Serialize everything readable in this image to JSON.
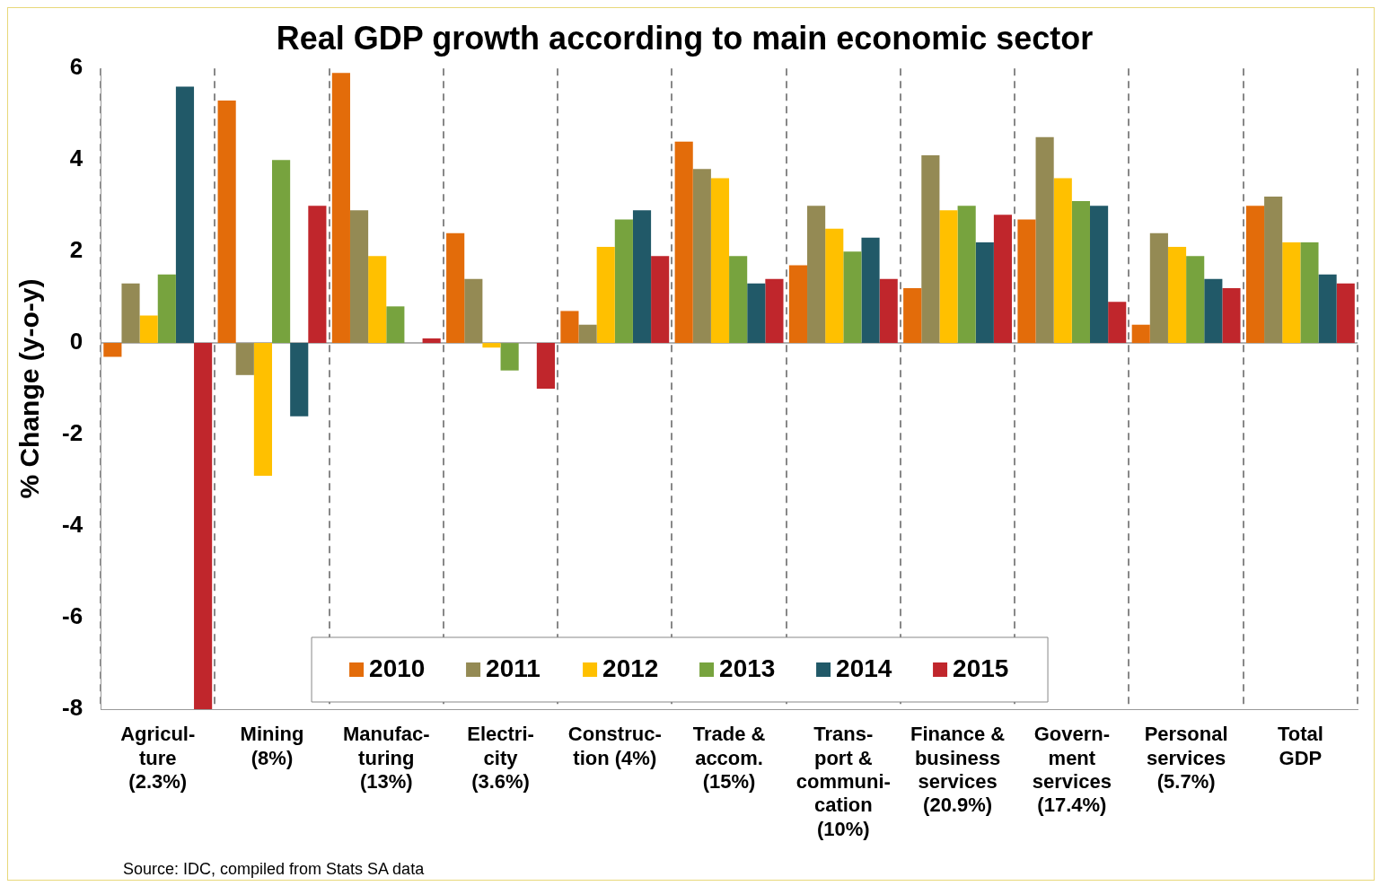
{
  "chart_data": {
    "type": "bar",
    "title": "Real GDP growth according to main economic sector",
    "ylabel": "% Change (y-o-y)",
    "categories": [
      "Agricul-\nture\n(2.3%)",
      "Mining\n(8%)",
      "Manufac-\nturing\n(13%)",
      "Electri-\ncity\n(3.6%)",
      "Construc-\ntion (4%)",
      "Trade &\naccom.\n(15%)",
      "Trans-\nport &\ncommuni-\ncation\n(10%)",
      "Finance &\nbusiness\nservices\n(20.9%)",
      "Govern-\nment\nservices\n(17.4%)",
      "Personal\nservices\n(5.7%)",
      "Total\nGDP"
    ],
    "series": [
      {
        "name": "2010",
        "color": "#e36c0a",
        "values": [
          -0.3,
          5.3,
          5.9,
          2.4,
          0.7,
          4.4,
          1.7,
          1.2,
          2.7,
          0.4,
          3.0
        ]
      },
      {
        "name": "2011",
        "color": "#948a54",
        "values": [
          1.3,
          -0.7,
          2.9,
          1.4,
          0.4,
          3.8,
          3.0,
          4.1,
          4.5,
          2.4,
          3.2
        ]
      },
      {
        "name": "2012",
        "color": "#ffc000",
        "values": [
          0.6,
          -2.9,
          1.9,
          -0.1,
          2.1,
          3.6,
          2.5,
          2.9,
          3.6,
          2.1,
          2.2
        ]
      },
      {
        "name": "2013",
        "color": "#77a33e",
        "values": [
          1.5,
          4.0,
          0.8,
          -0.6,
          2.7,
          1.9,
          2.0,
          3.0,
          3.1,
          1.9,
          2.2
        ]
      },
      {
        "name": "2014",
        "color": "#215968",
        "values": [
          5.6,
          -1.6,
          0.0,
          0.0,
          2.9,
          1.3,
          2.3,
          2.2,
          3.0,
          1.4,
          1.5
        ]
      },
      {
        "name": "2015",
        "color": "#c0262c",
        "values": [
          -8.0,
          3.0,
          0.1,
          -1.0,
          1.9,
          1.4,
          1.4,
          2.8,
          0.9,
          1.2,
          1.3
        ]
      }
    ],
    "ylim": [
      -8,
      6
    ],
    "yticks": [
      -8,
      -6,
      -4,
      -2,
      0,
      2,
      4,
      6
    ],
    "grid": "x",
    "legend": "bottom",
    "annotations": [
      "Source: IDC, compiled from Stats SA data"
    ]
  }
}
